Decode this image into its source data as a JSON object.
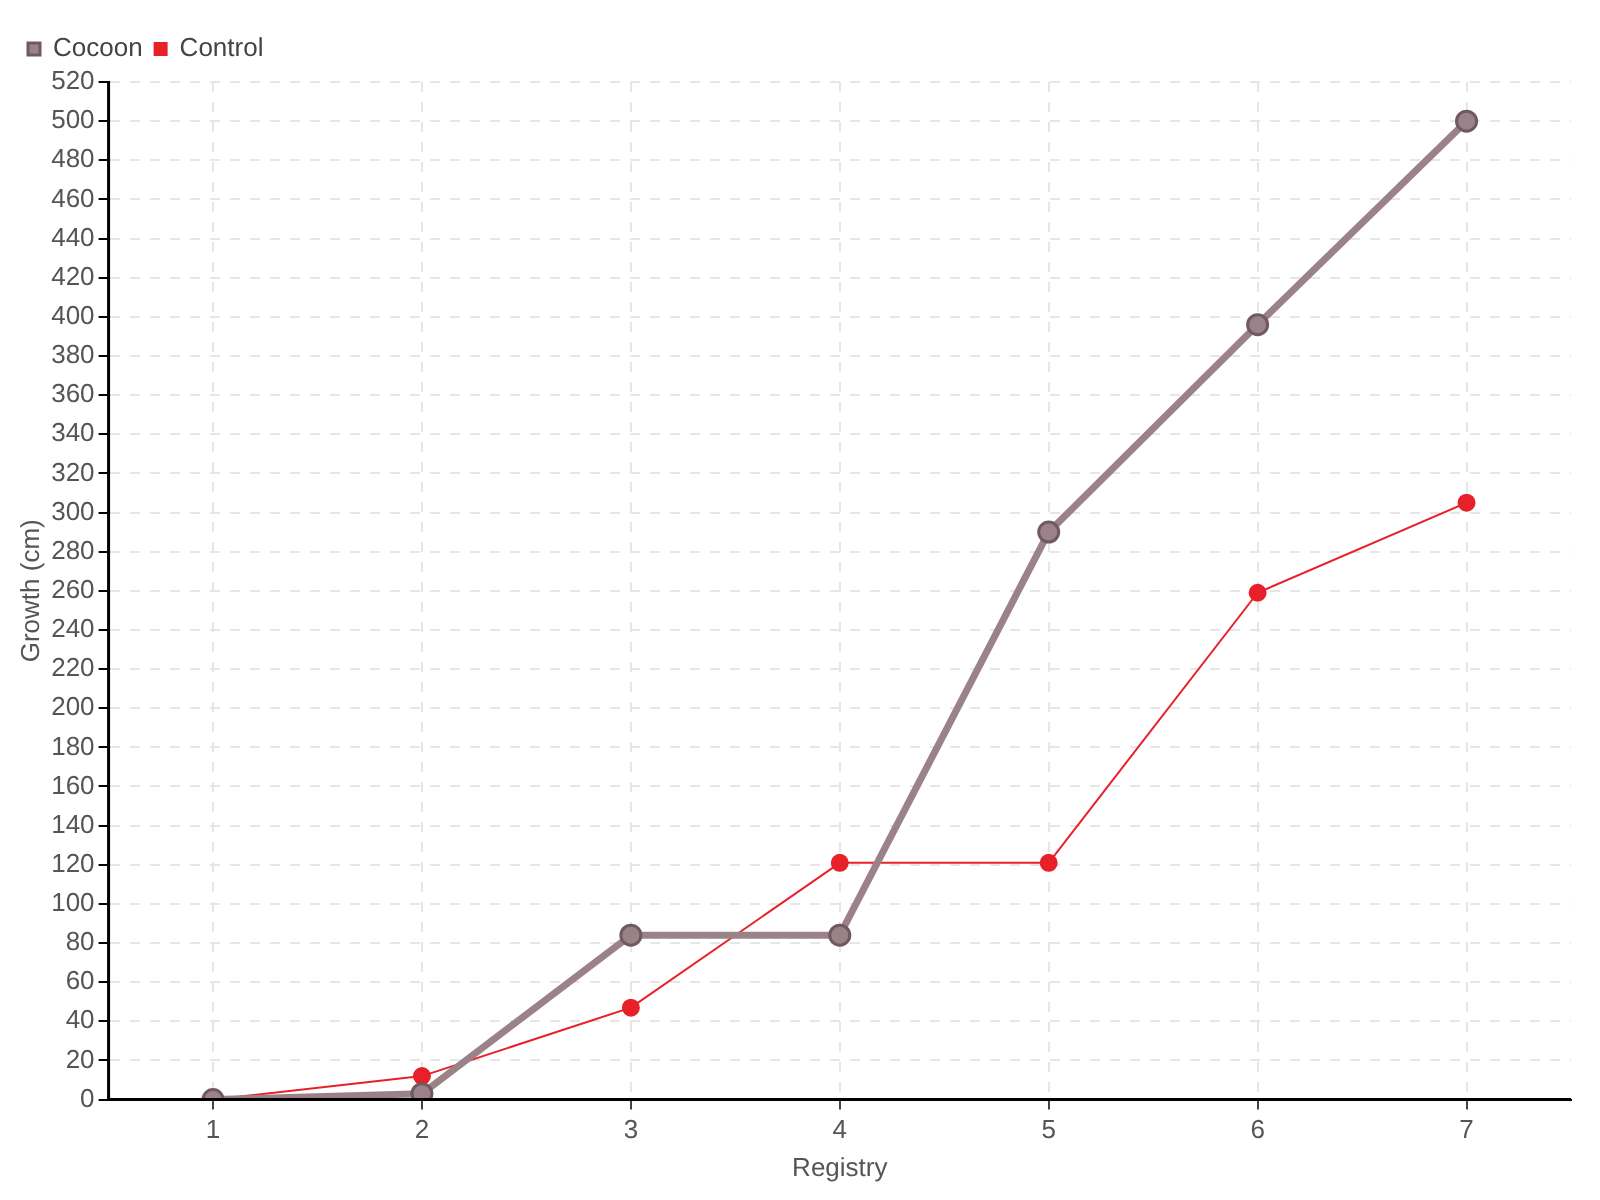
{
  "chart_data": {
    "type": "line",
    "xlabel": "Registry",
    "ylabel": "Growth (cm)",
    "categories": [
      "1",
      "2",
      "3",
      "4",
      "5",
      "6",
      "7"
    ],
    "series": [
      {
        "name": "Cocoon",
        "color": "#9b8288",
        "values": [
          0,
          3,
          84,
          84,
          290,
          396,
          500
        ]
      },
      {
        "name": "Control",
        "color": "#e8202a",
        "values": [
          0,
          12,
          47,
          121,
          121,
          259,
          305
        ]
      }
    ],
    "ylim": [
      0,
      520
    ],
    "yticks": [
      0,
      20,
      40,
      60,
      80,
      100,
      120,
      140,
      160,
      180,
      200,
      220,
      240,
      260,
      280,
      300,
      320,
      340,
      360,
      380,
      400,
      420,
      440,
      460,
      480,
      500,
      520
    ],
    "grid": true,
    "legend": "top left",
    "marker": "circle",
    "line_style": "solid"
  }
}
